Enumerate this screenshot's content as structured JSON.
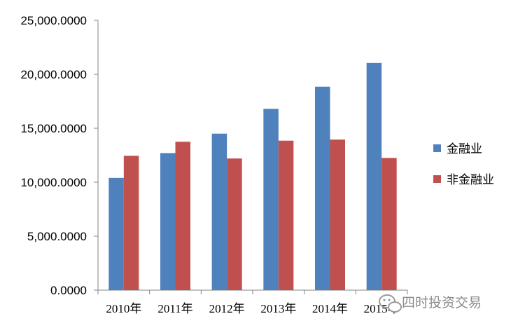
{
  "chart_data": {
    "type": "bar",
    "title": "",
    "xlabel": "",
    "ylabel": "",
    "categories": [
      "2010年",
      "2011年",
      "2012年",
      "2013年",
      "2014年",
      "2015年"
    ],
    "series": [
      {
        "name": "金融业",
        "values": [
          10400,
          12700,
          14500,
          16800,
          18850,
          21050
        ],
        "color": "#4f81bd"
      },
      {
        "name": "非金融业",
        "values": [
          12450,
          13750,
          12200,
          13850,
          13950,
          12250
        ],
        "color": "#c0504d"
      }
    ],
    "ylim": [
      0,
      25000
    ],
    "yticks": [
      "0.0000",
      "5,000.0000",
      "10,000.0000",
      "15,000.0000",
      "20,000.0000",
      "25,000.0000"
    ],
    "grid": false,
    "legend_position": "right"
  },
  "watermark": {
    "text": "四时投资交易",
    "icon": "wechat-icon"
  }
}
